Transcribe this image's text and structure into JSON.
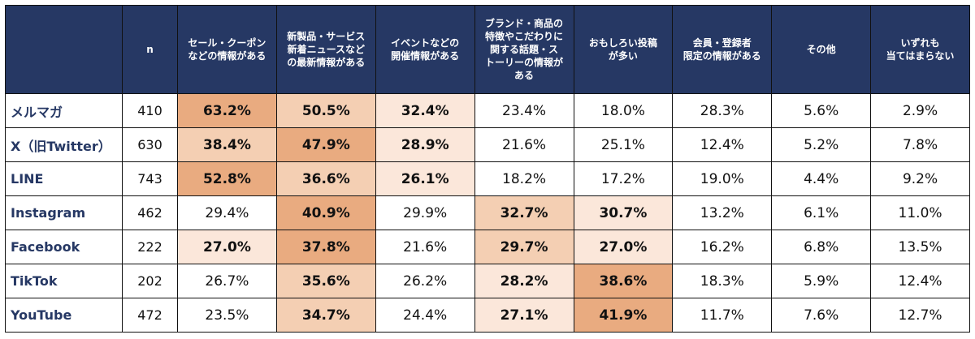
{
  "chart_data": {
    "type": "table",
    "columns": [
      "",
      "n",
      "セール・クーポン\nなどの情報がある",
      "新製品・サービス\n新着ニュースなど\nの最新情報がある",
      "イベントなどの\n開催情報がある",
      "ブランド・商品の\n特徴やこだわりに\n関する話題・ス\nトーリーの情報が\nある",
      "おもしろい投稿\nが多い",
      "会員・登録者\n限定の情報がある",
      "その他",
      "いずれも\n当てはまらない"
    ],
    "rows": [
      {
        "label": "メルマガ",
        "n": "410",
        "values": [
          "63.2%",
          "50.5%",
          "32.4%",
          "23.4%",
          "18.0%",
          "28.3%",
          "5.6%",
          "2.9%"
        ],
        "highlight": [
          1,
          2,
          3,
          0,
          0,
          0,
          0,
          0
        ]
      },
      {
        "label": "X（旧Twitter）",
        "n": "630",
        "values": [
          "38.4%",
          "47.9%",
          "28.9%",
          "21.6%",
          "25.1%",
          "12.4%",
          "5.2%",
          "7.8%"
        ],
        "highlight": [
          2,
          1,
          3,
          0,
          0,
          0,
          0,
          0
        ]
      },
      {
        "label": "LINE",
        "n": "743",
        "values": [
          "52.8%",
          "36.6%",
          "26.1%",
          "18.2%",
          "17.2%",
          "19.0%",
          "4.4%",
          "9.2%"
        ],
        "highlight": [
          1,
          2,
          3,
          0,
          0,
          0,
          0,
          0
        ]
      },
      {
        "label": "Instagram",
        "n": "462",
        "values": [
          "29.4%",
          "40.9%",
          "29.9%",
          "32.7%",
          "30.7%",
          "13.2%",
          "6.1%",
          "11.0%"
        ],
        "highlight": [
          0,
          1,
          0,
          2,
          3,
          0,
          0,
          0
        ]
      },
      {
        "label": "Facebook",
        "n": "222",
        "values": [
          "27.0%",
          "37.8%",
          "21.6%",
          "29.7%",
          "27.0%",
          "16.2%",
          "6.8%",
          "13.5%"
        ],
        "highlight": [
          3,
          1,
          0,
          2,
          3,
          0,
          0,
          0
        ]
      },
      {
        "label": "TikTok",
        "n": "202",
        "values": [
          "26.7%",
          "35.6%",
          "26.2%",
          "28.2%",
          "38.6%",
          "18.3%",
          "5.9%",
          "12.4%"
        ],
        "highlight": [
          0,
          2,
          0,
          3,
          1,
          0,
          0,
          0
        ]
      },
      {
        "label": "YouTube",
        "n": "472",
        "values": [
          "23.5%",
          "34.7%",
          "24.4%",
          "27.1%",
          "41.9%",
          "11.7%",
          "7.6%",
          "12.7%"
        ],
        "highlight": [
          0,
          2,
          0,
          3,
          1,
          0,
          0,
          0
        ]
      }
    ],
    "colors": {
      "header": "#263864",
      "rank1": "#e9ab80",
      "rank2": "#f4cfb3",
      "rank3": "#fbe7da"
    }
  }
}
